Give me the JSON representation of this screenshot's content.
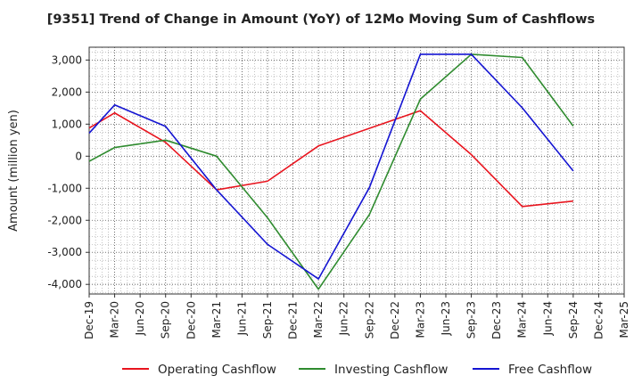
{
  "chart_data": {
    "type": "line",
    "title": "[9351]  Trend of Change in Amount (YoY) of 12Mo Moving Sum of Cashflows",
    "xlabel": "",
    "ylabel": "Amount (million yen)",
    "categories": [
      "Dec-19",
      "Mar-20",
      "Jun-20",
      "Sep-20",
      "Dec-20",
      "Mar-21",
      "Jun-21",
      "Sep-21",
      "Dec-21",
      "Mar-22",
      "Jun-22",
      "Sep-22",
      "Dec-22",
      "Mar-23",
      "Jun-23",
      "Sep-23",
      "Dec-23",
      "Mar-24",
      "Jun-24",
      "Sep-24",
      "Dec-24",
      "Mar-25"
    ],
    "ylim": [
      -4300,
      3400
    ],
    "yticks": [
      3000,
      2000,
      1000,
      0,
      -1000,
      -2000,
      -3000,
      -4000
    ],
    "ytick_labels": [
      "3,000",
      "2,000",
      "1,000",
      "0",
      "-1,000",
      "-2,000",
      "-3,000",
      "-4,000"
    ],
    "series": [
      {
        "name": "Operating Cashflow",
        "color": "#e8141e",
        "values": [
          880,
          1350,
          null,
          430,
          null,
          -1050,
          null,
          -780,
          null,
          320,
          null,
          null,
          null,
          1420,
          null,
          50,
          null,
          -1570,
          null,
          -1400,
          null,
          null
        ]
      },
      {
        "name": "Investing Cashflow",
        "color": "#2f8b2f",
        "values": [
          -160,
          270,
          null,
          500,
          null,
          0,
          null,
          -1920,
          null,
          -4150,
          null,
          -1820,
          null,
          1780,
          null,
          3180,
          null,
          3080,
          null,
          940,
          null,
          null
        ]
      },
      {
        "name": "Free Cashflow",
        "color": "#1414d2",
        "values": [
          720,
          1600,
          null,
          930,
          null,
          -1050,
          null,
          -2750,
          null,
          -3830,
          null,
          -980,
          null,
          3180,
          null,
          3180,
          null,
          1510,
          null,
          -460,
          null,
          null
        ]
      }
    ],
    "grid": true,
    "legend_position": "bottom"
  }
}
